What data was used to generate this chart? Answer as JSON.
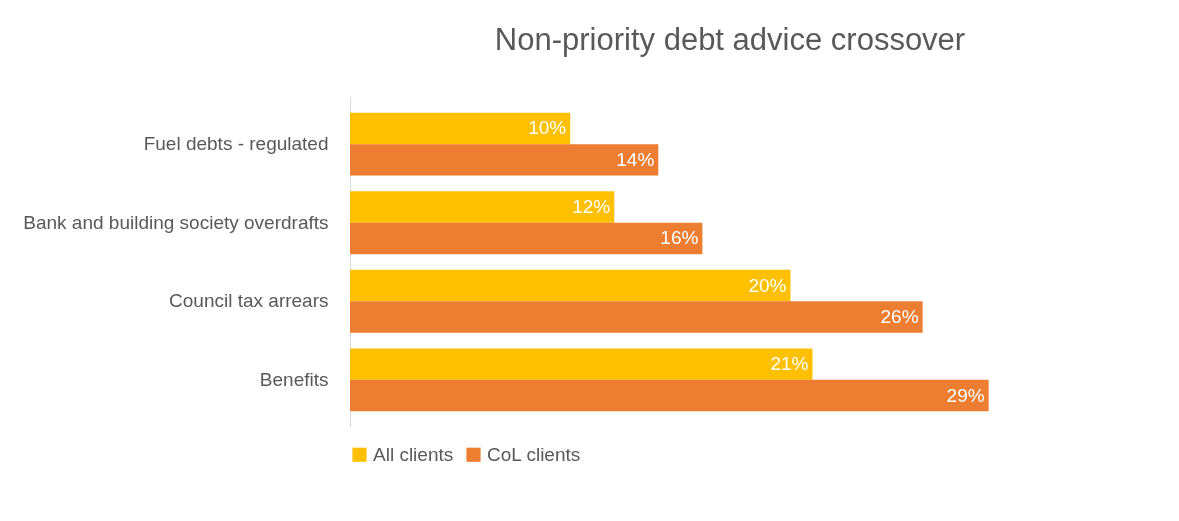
{
  "chart_data": {
    "type": "bar",
    "orientation": "horizontal",
    "title": "Non-priority debt advice crossover",
    "categories": [
      "Fuel debts - regulated",
      "Bank and building society overdrafts",
      "Council tax arrears",
      "Benefits"
    ],
    "series": [
      {
        "name": "All clients",
        "color": "#ffc000",
        "values": [
          10,
          12,
          20,
          21
        ],
        "value_labels": [
          "10%",
          "12%",
          "20%",
          "21%"
        ]
      },
      {
        "name": "CoL clients",
        "color": "#ed7d31",
        "values": [
          14,
          16,
          26,
          29
        ],
        "value_labels": [
          "14%",
          "16%",
          "26%",
          "29%"
        ]
      }
    ],
    "legend": "bottom",
    "tick_labels": "y"
  }
}
